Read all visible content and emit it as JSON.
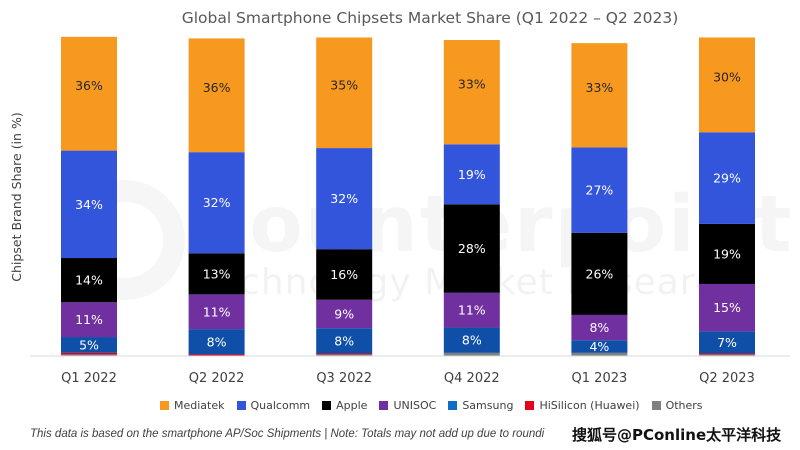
{
  "chart_data": {
    "type": "bar",
    "stacked": true,
    "title": "Global Smartphone Chipsets Market Share (Q1 2022 – Q2 2023)",
    "xlabel": "",
    "ylabel": "Chipset Brand Share (in %)",
    "ylim": [
      0,
      100
    ],
    "grid": false,
    "legend_position": "bottom",
    "categories": [
      "Q1 2022",
      "Q2 2022",
      "Q3 2022",
      "Q4 2022",
      "Q1 2023",
      "Q2 2023"
    ],
    "series": [
      {
        "name": "Others",
        "color": "#808080",
        "values": [
          0.5,
          0,
          0.5,
          1,
          1,
          0.5
        ],
        "labels": [
          "",
          "",
          "",
          "",
          "",
          ""
        ]
      },
      {
        "name": "HiSilicon (Huawei)",
        "color": "#e3001b",
        "values": [
          0.5,
          0.5,
          0.3,
          0,
          0,
          0.3
        ],
        "labels": [
          "",
          "",
          "",
          "",
          "",
          ""
        ]
      },
      {
        "name": "Samsung",
        "color": "#0f4fa8",
        "values": [
          5,
          8,
          8,
          8,
          4,
          7
        ],
        "labels": [
          "5%",
          "8%",
          "8%",
          "8%",
          "4%",
          "7%"
        ]
      },
      {
        "name": "UNISOC",
        "color": "#7030a0",
        "values": [
          11,
          11,
          9,
          11,
          8,
          15
        ],
        "labels": [
          "11%",
          "11%",
          "9%",
          "11%",
          "8%",
          "15%"
        ]
      },
      {
        "name": "Apple",
        "color": "#000000",
        "values": [
          14,
          13,
          16,
          28,
          26,
          19
        ],
        "labels": [
          "14%",
          "13%",
          "16%",
          "28%",
          "26%",
          "19%"
        ]
      },
      {
        "name": "Qualcomm",
        "color": "#3255dc",
        "values": [
          34,
          32,
          32,
          19,
          27,
          29
        ],
        "labels": [
          "34%",
          "32%",
          "32%",
          "19%",
          "27%",
          "29%"
        ]
      },
      {
        "name": "Mediatek",
        "color": "#f7991f",
        "values": [
          36,
          36,
          35,
          33,
          33,
          30
        ],
        "labels": [
          "36%",
          "36%",
          "35%",
          "33%",
          "33%",
          "30%"
        ]
      }
    ]
  },
  "legend": [
    {
      "name": "Mediatek",
      "color": "#f7991f"
    },
    {
      "name": "Qualcomm",
      "color": "#3255dc"
    },
    {
      "name": "Apple",
      "color": "#000000"
    },
    {
      "name": "UNISOC",
      "color": "#7030a0"
    },
    {
      "name": "Samsung",
      "color": "#0f6fc6"
    },
    {
      "name": "HiSilicon (Huawei)",
      "color": "#e3001b"
    },
    {
      "name": "Others",
      "color": "#808080"
    }
  ],
  "footnote": "This data is based on the smartphone AP/Soc Shipments | Note: Totals may not add up due to roundi",
  "credit": "搜狐号@PConline太平洋科技",
  "watermark": {
    "main": "Counterpoint",
    "sub": "Technology Market Research"
  }
}
